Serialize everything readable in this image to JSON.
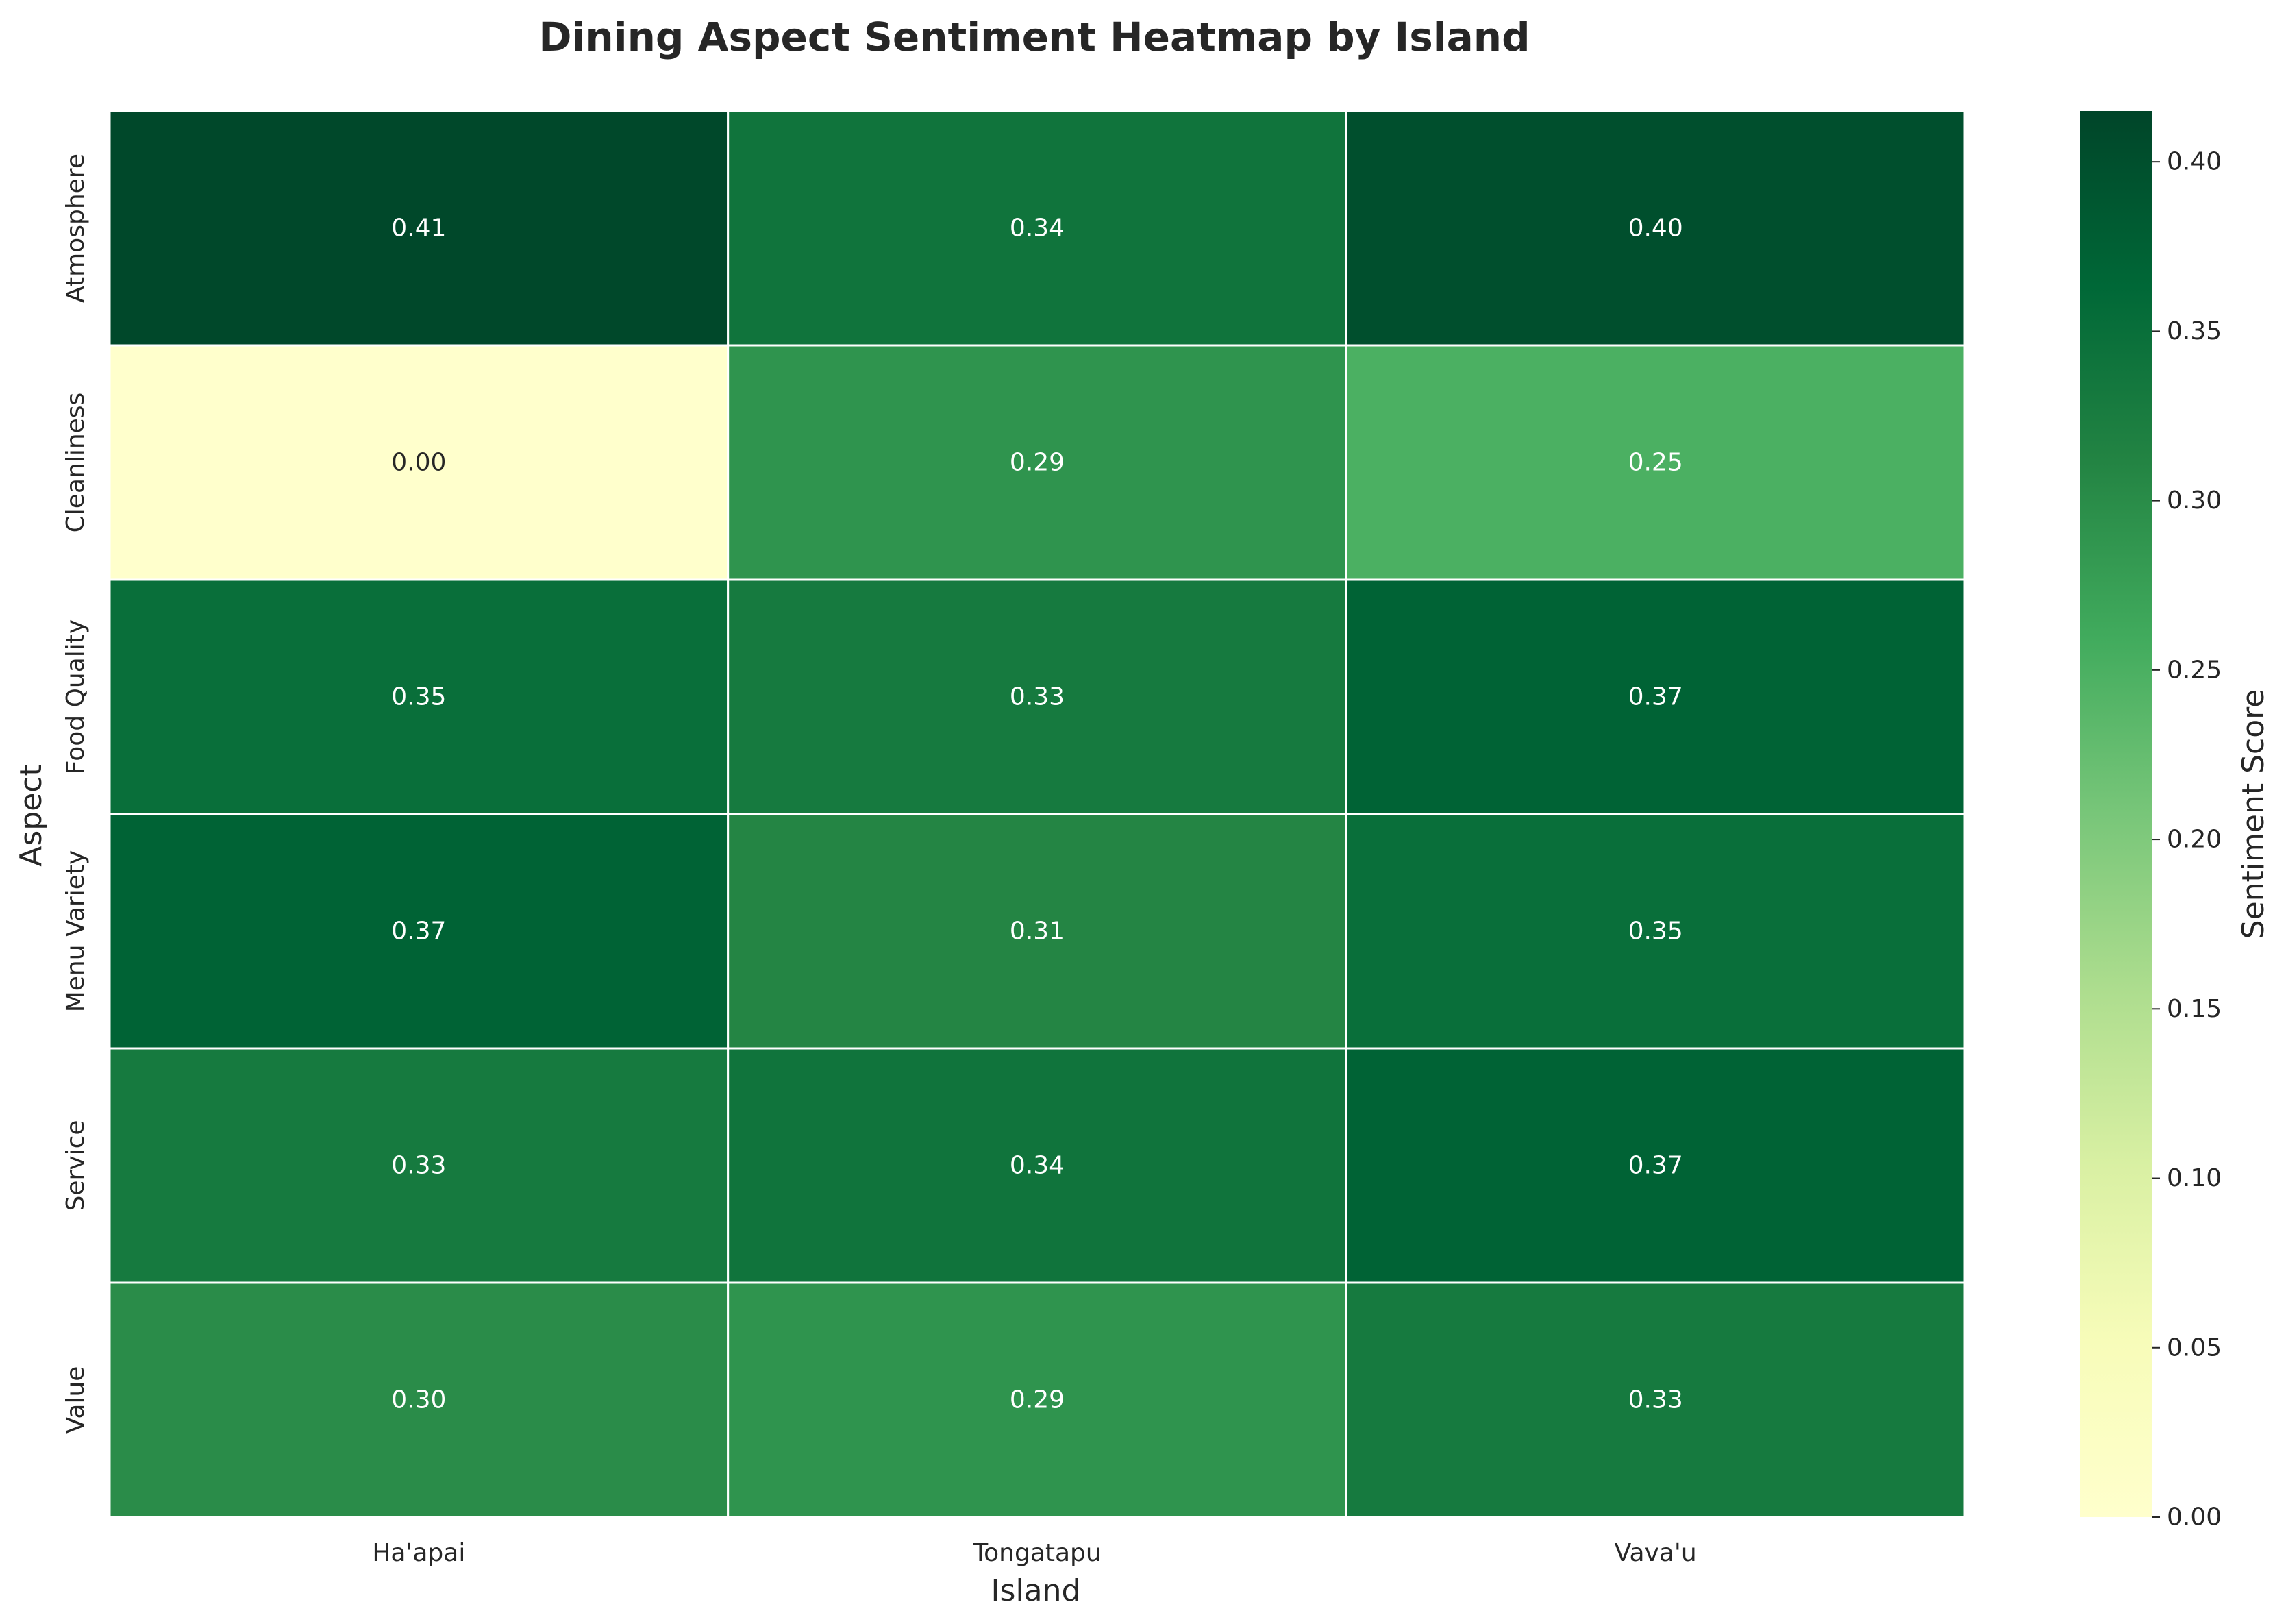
{
  "chart_data": {
    "type": "heatmap",
    "title": "Dining Aspect Sentiment Heatmap by Island",
    "xlabel": "Island",
    "ylabel": "Aspect",
    "x_categories": [
      "Ha'apai",
      "Tongatapu",
      "Vava'u"
    ],
    "y_categories": [
      "Atmosphere",
      "Cleanliness",
      "Food Quality",
      "Menu Variety",
      "Service",
      "Value"
    ],
    "values": [
      [
        0.41,
        0.34,
        0.4
      ],
      [
        0.0,
        0.29,
        0.25
      ],
      [
        0.35,
        0.33,
        0.37
      ],
      [
        0.37,
        0.31,
        0.35
      ],
      [
        0.33,
        0.34,
        0.37
      ],
      [
        0.3,
        0.29,
        0.33
      ]
    ],
    "value_format": "0.00",
    "colormap": "YlGn",
    "vmin": 0.0,
    "vmax": 0.415,
    "colorbar": {
      "label": "Sentiment Score",
      "ticks": [
        "0.00",
        "0.05",
        "0.10",
        "0.15",
        "0.20",
        "0.25",
        "0.30",
        "0.35",
        "0.40"
      ]
    },
    "grid_line_color": "#ffffff"
  }
}
